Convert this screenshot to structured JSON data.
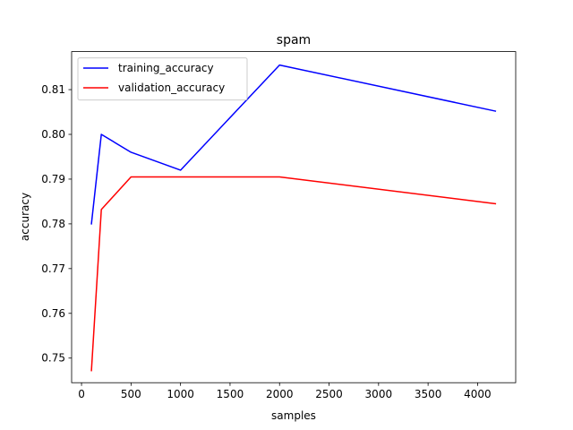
{
  "chart_data": {
    "type": "line",
    "title": "spam",
    "xlabel": "samples",
    "ylabel": "accuracy",
    "xlim": [
      -100,
      4385
    ],
    "ylim": [
      0.7445,
      0.8185
    ],
    "xticks": [
      0,
      500,
      1000,
      1500,
      2000,
      2500,
      3000,
      3500,
      4000
    ],
    "yticks": [
      0.75,
      0.76,
      0.77,
      0.78,
      0.79,
      0.8,
      0.81
    ],
    "ytick_labels": [
      "0.75",
      "0.76",
      "0.77",
      "0.78",
      "0.79",
      "0.80",
      "0.81"
    ],
    "grid": false,
    "legend_position": "upper left",
    "series": [
      {
        "name": "training_accuracy",
        "color": "#0000ff",
        "x": [
          100,
          200,
          500,
          1000,
          2000,
          4180
        ],
        "y": [
          0.78,
          0.8,
          0.796,
          0.792,
          0.8155,
          0.8052
        ]
      },
      {
        "name": "validation_accuracy",
        "color": "#ff0000",
        "x": [
          100,
          200,
          500,
          1000,
          2000,
          4180
        ],
        "y": [
          0.7472,
          0.7832,
          0.7905,
          0.7905,
          0.7905,
          0.7845
        ]
      }
    ]
  }
}
